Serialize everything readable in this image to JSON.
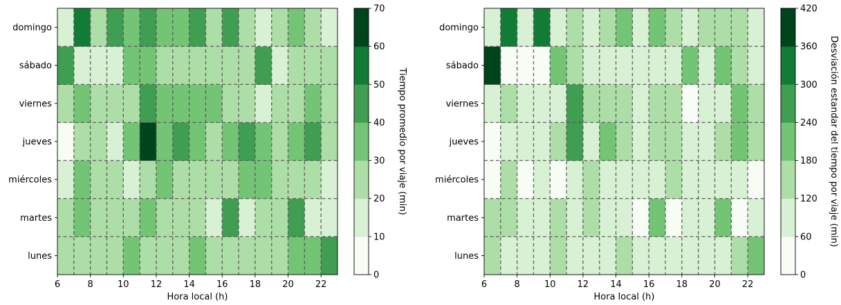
{
  "chart_data": [
    {
      "type": "heatmap",
      "xlabel": "Hora local (h)",
      "colorbar_label": "Tiempo promedio por viaje (min)",
      "x_ticks": [
        6,
        8,
        10,
        12,
        14,
        16,
        18,
        20,
        22
      ],
      "x_range": [
        6,
        23
      ],
      "days": [
        "lunes",
        "martes",
        "miércoles",
        "jueves",
        "viernes",
        "sábado",
        "domingo"
      ],
      "hours": [
        6,
        7,
        8,
        9,
        10,
        11,
        12,
        13,
        14,
        15,
        16,
        17,
        18,
        19,
        20,
        21,
        22
      ],
      "colorbar_ticks": [
        0,
        10,
        20,
        30,
        40,
        50,
        60,
        70
      ],
      "colorbar_range": [
        0,
        70
      ],
      "grid": true,
      "values": [
        [
          25,
          25,
          25,
          25,
          35,
          25,
          25,
          25,
          35,
          25,
          25,
          25,
          25,
          25,
          35,
          35,
          45
        ],
        [
          25,
          35,
          25,
          25,
          25,
          35,
          25,
          25,
          25,
          15,
          45,
          15,
          25,
          25,
          45,
          15,
          15
        ],
        [
          15,
          35,
          25,
          25,
          15,
          25,
          35,
          25,
          25,
          25,
          25,
          35,
          35,
          25,
          25,
          25,
          15
        ],
        [
          5,
          25,
          25,
          15,
          35,
          65,
          35,
          45,
          35,
          25,
          35,
          45,
          35,
          25,
          35,
          45,
          25
        ],
        [
          25,
          35,
          25,
          25,
          25,
          45,
          35,
          35,
          35,
          35,
          25,
          25,
          15,
          25,
          25,
          35,
          25
        ],
        [
          45,
          15,
          15,
          15,
          35,
          35,
          25,
          25,
          25,
          25,
          25,
          25,
          45,
          15,
          25,
          25,
          25
        ],
        [
          15,
          55,
          25,
          45,
          35,
          45,
          35,
          35,
          45,
          25,
          45,
          25,
          15,
          25,
          35,
          25,
          15
        ]
      ]
    },
    {
      "type": "heatmap",
      "xlabel": "Hora local (h)",
      "colorbar_label": "Desviación estandar del tiempo por viaje (min)",
      "x_ticks": [
        6,
        8,
        10,
        12,
        14,
        16,
        18,
        20,
        22
      ],
      "x_range": [
        6,
        23
      ],
      "days": [
        "lunes",
        "martes",
        "miércoles",
        "jueves",
        "viernes",
        "sábado",
        "domingo"
      ],
      "hours": [
        6,
        7,
        8,
        9,
        10,
        11,
        12,
        13,
        14,
        15,
        16,
        17,
        18,
        19,
        20,
        21,
        22
      ],
      "colorbar_ticks": [
        0,
        60,
        120,
        180,
        240,
        300,
        360,
        420
      ],
      "colorbar_range": [
        0,
        420
      ],
      "grid": true,
      "values": [
        [
          150,
          90,
          90,
          90,
          150,
          90,
          90,
          90,
          150,
          90,
          90,
          90,
          90,
          90,
          90,
          150,
          210
        ],
        [
          150,
          150,
          90,
          90,
          150,
          90,
          150,
          90,
          90,
          30,
          210,
          30,
          90,
          90,
          210,
          30,
          90
        ],
        [
          30,
          150,
          30,
          90,
          30,
          90,
          150,
          90,
          90,
          90,
          90,
          150,
          90,
          90,
          90,
          90,
          30
        ],
        [
          30,
          90,
          90,
          90,
          150,
          270,
          90,
          210,
          150,
          90,
          150,
          150,
          90,
          90,
          150,
          210,
          150
        ],
        [
          90,
          150,
          90,
          90,
          90,
          270,
          150,
          150,
          150,
          90,
          150,
          150,
          30,
          90,
          90,
          210,
          150
        ],
        [
          390,
          30,
          30,
          30,
          210,
          150,
          90,
          90,
          90,
          90,
          90,
          90,
          210,
          90,
          210,
          150,
          90
        ],
        [
          90,
          330,
          90,
          330,
          90,
          150,
          90,
          150,
          210,
          90,
          210,
          150,
          90,
          150,
          150,
          150,
          90
        ]
      ]
    }
  ],
  "colormap": [
    "#f7fcf5",
    "#d8f0d3",
    "#aedea7",
    "#74c476",
    "#3f9e51",
    "#127b36",
    "#00441b"
  ]
}
